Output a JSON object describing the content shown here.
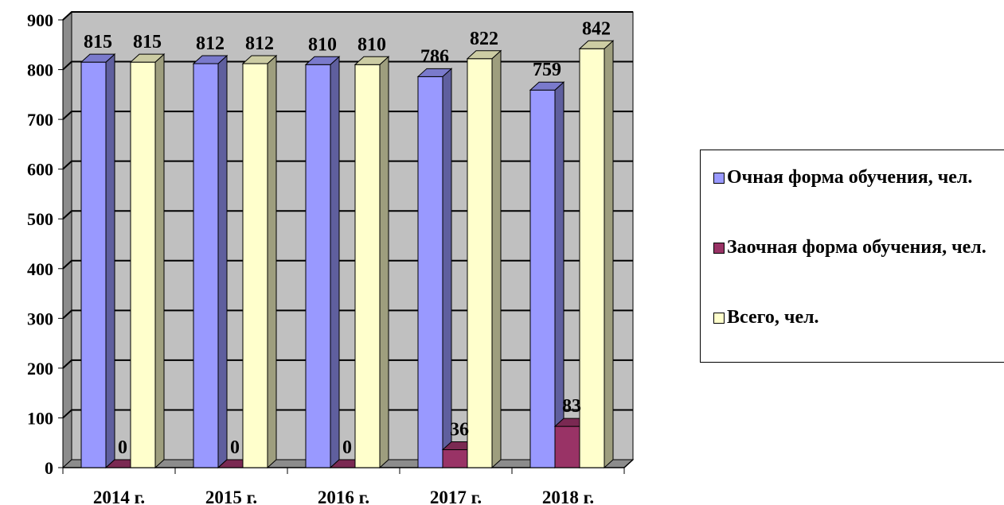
{
  "chart_data": {
    "type": "bar",
    "categories": [
      "2014 г.",
      "2015 г.",
      "2016 г.",
      "2017 г.",
      "2018 г."
    ],
    "series": [
      {
        "name": "Очная форма обучения, чел.",
        "values": [
          815,
          812,
          810,
          786,
          759
        ],
        "color": "#9999ff"
      },
      {
        "name": "Заочная форма обучения, чел.",
        "values": [
          0,
          0,
          0,
          36,
          83
        ],
        "color": "#993366"
      },
      {
        "name": "Всего, чел.",
        "values": [
          815,
          812,
          810,
          822,
          842
        ],
        "color": "#ffffcc"
      }
    ],
    "yticks": [
      "0",
      "100",
      "200",
      "300",
      "400",
      "500",
      "600",
      "700",
      "800",
      "900"
    ],
    "ylim": [
      0,
      900
    ],
    "grid": true,
    "three_d": true,
    "wall_color": "#c0c0c0",
    "legend_position": "right"
  }
}
